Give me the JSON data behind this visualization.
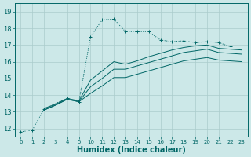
{
  "xlabel": "Humidex (Indice chaleur)",
  "ylabel": "",
  "bg_color": "#cce8e8",
  "line_color": "#006666",
  "grid_color": "#aacccc",
  "ylim": [
    11.5,
    19.5
  ],
  "yticks": [
    12,
    13,
    14,
    15,
    16,
    17,
    18,
    19
  ],
  "xtick_labels": [
    "0",
    "1",
    "2",
    "3",
    "4",
    "5",
    "10",
    "11",
    "12",
    "13",
    "14",
    "15",
    "16",
    "17",
    "18",
    "19",
    "20",
    "21",
    "22",
    "23"
  ],
  "series": [
    {
      "xi": [
        0,
        1,
        2,
        3,
        4,
        5,
        6,
        7,
        8,
        9,
        10,
        11,
        12,
        13,
        14,
        15,
        16,
        17,
        18
      ],
      "y": [
        11.8,
        11.9,
        13.15,
        13.5,
        13.8,
        13.6,
        17.5,
        18.5,
        18.55,
        17.8,
        17.8,
        17.8,
        17.3,
        17.2,
        17.25,
        17.15,
        17.2,
        17.15,
        16.9
      ],
      "style": "dotted",
      "marker": "+"
    },
    {
      "xi": [
        2,
        3,
        4,
        5,
        6,
        7,
        8,
        9,
        10,
        11,
        12,
        13,
        14,
        15,
        16,
        17,
        18,
        19
      ],
      "y": [
        13.1,
        13.4,
        13.75,
        13.6,
        14.5,
        15.0,
        15.55,
        15.55,
        15.75,
        15.95,
        16.15,
        16.35,
        16.55,
        16.65,
        16.75,
        16.55,
        16.5,
        16.45
      ],
      "style": "solid",
      "marker": null
    },
    {
      "xi": [
        2,
        3,
        4,
        5,
        6,
        7,
        8,
        9,
        10,
        11,
        12,
        13,
        14,
        15,
        16,
        17,
        18,
        19
      ],
      "y": [
        13.1,
        13.4,
        13.75,
        13.6,
        14.1,
        14.55,
        15.05,
        15.05,
        15.25,
        15.45,
        15.65,
        15.85,
        16.05,
        16.15,
        16.25,
        16.1,
        16.05,
        16.0
      ],
      "style": "solid",
      "marker": null
    },
    {
      "xi": [
        2,
        3,
        4,
        5,
        6,
        7,
        8,
        9,
        10,
        11,
        12,
        13,
        14,
        15,
        16,
        17,
        18,
        19
      ],
      "y": [
        13.2,
        13.45,
        13.8,
        13.65,
        14.9,
        15.45,
        16.0,
        15.85,
        16.05,
        16.3,
        16.5,
        16.7,
        16.85,
        16.95,
        17.0,
        16.8,
        16.75,
        16.7
      ],
      "style": "solid",
      "marker": null
    }
  ]
}
